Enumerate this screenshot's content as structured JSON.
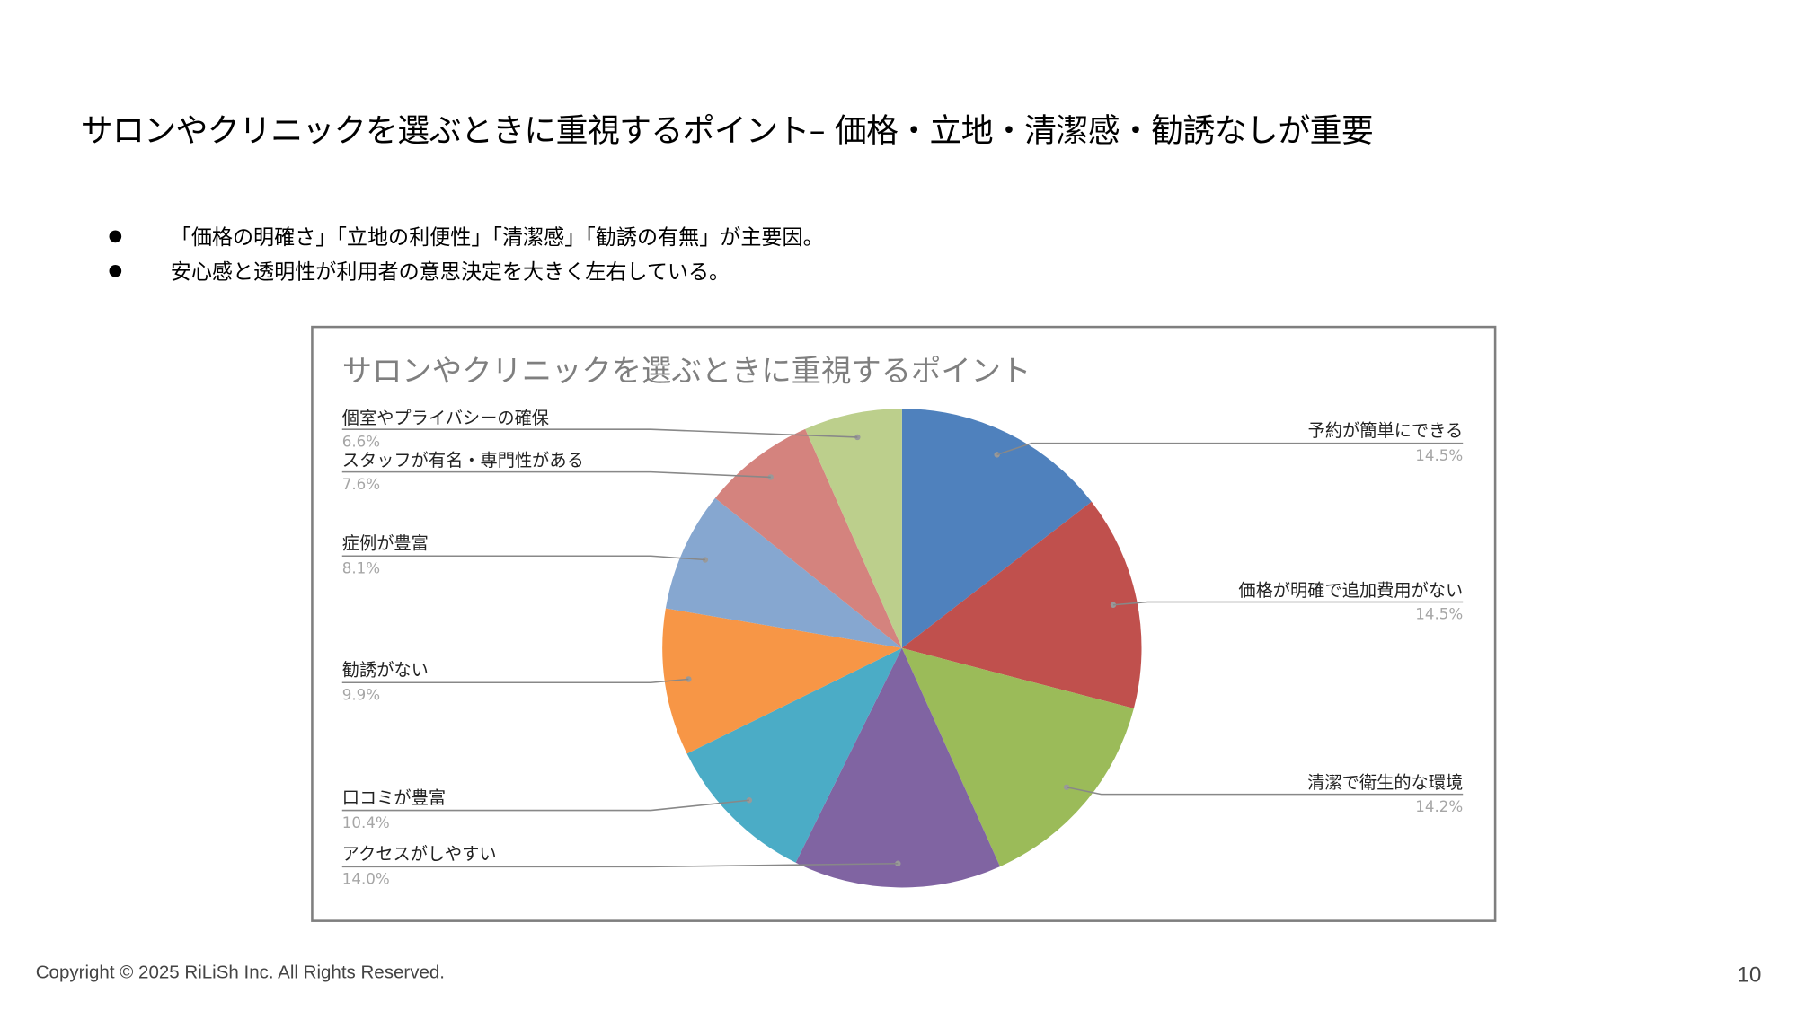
{
  "slide": {
    "title": "サロンやクリニックを選ぶときに重視するポイント– 価格・立地・清潔感・勧誘なしが重要",
    "bullets": [
      "「価格の明確さ」「立地の利便性」「清潔感」「勧誘の有無」が主要因。",
      "安心感と透明性が利用者の意思決定を大きく左右している。"
    ],
    "bullet_symbol": "●",
    "footer": "Copyright © 2025 RiLiSh Inc. All Rights Reserved.",
    "page_number": "10"
  },
  "chart_data": {
    "type": "pie",
    "title": "サロンやクリニックを選ぶときに重視するポイント",
    "start": "12 o'clock, clockwise",
    "legend": "none (leader-line data labels)",
    "slices": [
      {
        "label": "予約が簡単にできる",
        "value": 14.5,
        "display": "14.5%",
        "color": "#4F81BD"
      },
      {
        "label": "価格が明確で追加費用がない",
        "value": 14.5,
        "display": "14.5%",
        "color": "#C0504D"
      },
      {
        "label": "清潔で衛生的な環境",
        "value": 14.2,
        "display": "14.2%",
        "color": "#9BBB59"
      },
      {
        "label": "アクセスがしやすい",
        "value": 14.0,
        "display": "14.0%",
        "color": "#8064A2"
      },
      {
        "label": "口コミが豊富",
        "value": 10.4,
        "display": "10.4%",
        "color": "#4BACC6"
      },
      {
        "label": "勧誘がない",
        "value": 9.9,
        "display": "9.9%",
        "color": "#F79646"
      },
      {
        "label": "症例が豊富",
        "value": 8.1,
        "display": "8.1%",
        "color": "#86A7D0"
      },
      {
        "label": "スタッフが有名・専門性がある",
        "value": 7.6,
        "display": "7.6%",
        "color": "#D4837E"
      },
      {
        "label": "個室やプライバシーの確保",
        "value": 6.6,
        "display": "6.6%",
        "color": "#BCCF8C"
      }
    ]
  }
}
